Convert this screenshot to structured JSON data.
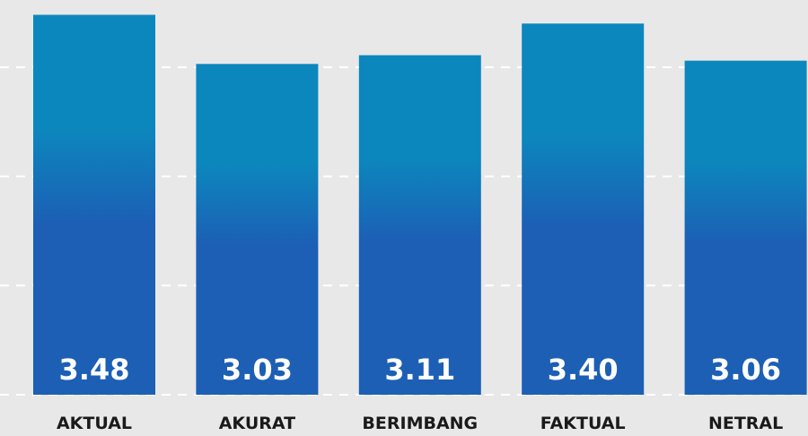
{
  "chart_data": {
    "type": "bar",
    "categories": [
      "AKTUAL",
      "AKURAT",
      "BERIMBANG",
      "FAKTUAL",
      "NETRAL"
    ],
    "values": [
      3.48,
      3.03,
      3.11,
      3.4,
      3.06
    ],
    "value_labels": [
      "3.48",
      "3.03",
      "3.11",
      "3.40",
      "3.06"
    ],
    "color": [
      "#0c87bd",
      "#1c5fb5"
    ],
    "ylim": [
      0,
      3.55
    ],
    "yticks": [
      0,
      1,
      2,
      3
    ],
    "grid": true
  }
}
